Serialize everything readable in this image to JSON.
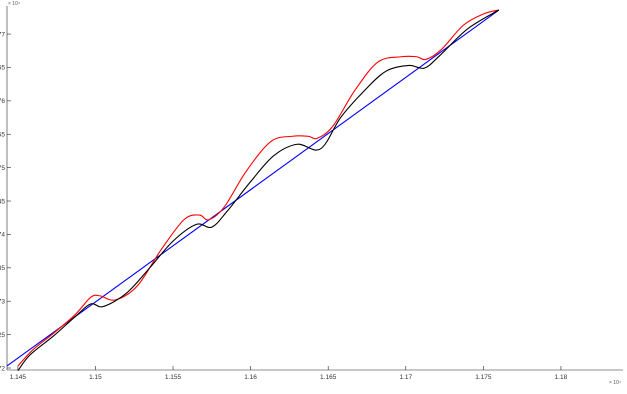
{
  "chart_data": {
    "type": "line",
    "title": "",
    "xlabel": "",
    "ylabel": "",
    "x_exponent_label": "× 10⁴",
    "y_exponent_label": "× 10⁴",
    "xlim": [
      11443,
      11840
    ],
    "ylim": [
      27197,
      27742
    ],
    "x_ticks": [
      11450,
      11500,
      11550,
      11600,
      11650,
      11700,
      11750,
      11800
    ],
    "x_tick_labels": [
      "1.145",
      "1.15",
      "1.155",
      "1.16",
      "1.165",
      "1.17",
      "1.175",
      "1.18"
    ],
    "y_ticks": [
      27200,
      27250,
      27300,
      27350,
      27400,
      27450,
      27500,
      27550,
      27600,
      27650,
      27700
    ],
    "y_tick_labels": [
      "2.72",
      "2.725",
      "2.73",
      "2.735",
      "2.74",
      "2.745",
      "2.75",
      "2.755",
      "2.76",
      "2.765",
      "2.77"
    ],
    "grid": false,
    "legend": "none",
    "series": [
      {
        "color": "#0000ff",
        "x": [
          11443,
          11760
        ],
        "y": [
          27203,
          27736
        ]
      },
      {
        "color": "#ff0000",
        "x": [
          11450,
          11460,
          11473,
          11487,
          11497,
          11503,
          11513,
          11527,
          11542,
          11557,
          11567,
          11573,
          11583,
          11597,
          11613,
          11627,
          11637,
          11643,
          11653,
          11667,
          11682,
          11697,
          11707,
          11713,
          11723,
          11737,
          11750,
          11760
        ],
        "y": [
          27203,
          27228,
          27252,
          27280,
          27306,
          27308,
          27302,
          27323,
          27376,
          27422,
          27429,
          27422,
          27441,
          27494,
          27539,
          27547,
          27547,
          27544,
          27562,
          27615,
          27658,
          27666,
          27666,
          27662,
          27677,
          27713,
          27730,
          27736
        ]
      },
      {
        "color": "#000000",
        "x": [
          11450,
          11458,
          11473,
          11487,
          11497,
          11505,
          11520,
          11535,
          11550,
          11565,
          11575,
          11585,
          11600,
          11615,
          11630,
          11645,
          11658,
          11672,
          11687,
          11702,
          11712,
          11722,
          11740,
          11760
        ],
        "y": [
          27196,
          27220,
          27248,
          27277,
          27296,
          27292,
          27312,
          27350,
          27390,
          27415,
          27411,
          27435,
          27479,
          27518,
          27535,
          27528,
          27575,
          27612,
          27644,
          27653,
          27649,
          27668,
          27708,
          27736
        ]
      }
    ]
  }
}
